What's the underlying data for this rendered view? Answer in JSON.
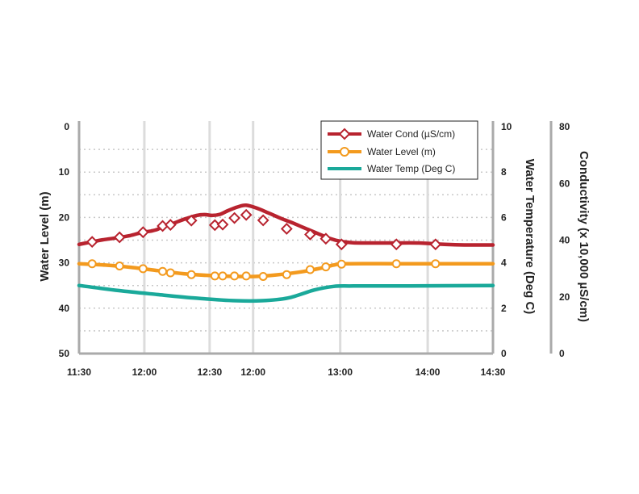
{
  "chart_data": {
    "type": "line",
    "x_tick_labels": [
      "11:30",
      "12:00",
      "12:30",
      "12:00",
      "13:00",
      "14:00",
      "14:30"
    ],
    "x_tick_hours": [
      11.5,
      12.0,
      12.5,
      12.833,
      13.5,
      14.17,
      14.67
    ],
    "x_range": [
      11.5,
      14.67
    ],
    "axes": {
      "water_level": {
        "title": "Water Level (m)",
        "range": [
          0,
          50
        ],
        "inverted": true,
        "ticks": [
          0,
          10,
          20,
          30,
          40,
          50
        ]
      },
      "water_temp": {
        "title": "Water Temperature (Deg C)",
        "range": [
          0,
          10
        ],
        "ticks": [
          0,
          2,
          4,
          6,
          8,
          10
        ]
      },
      "conductivity": {
        "title": "Conductivity (x 10,000 µS/cm)",
        "range": [
          0,
          80
        ],
        "ticks": [
          0,
          20,
          40,
          60,
          80
        ]
      }
    },
    "series": [
      {
        "name": "Water Cond (µS/cm)",
        "axis": "conductivity",
        "color": "#b8232f",
        "marker": "diamond",
        "points": [
          [
            11.5,
            38.5
          ],
          [
            11.6,
            39.4
          ],
          [
            11.68,
            40.1
          ],
          [
            11.8,
            40.9
          ],
          [
            11.89,
            41.6
          ],
          [
            11.98,
            42.7
          ],
          [
            12.05,
            43.2
          ],
          [
            12.1,
            43.8
          ],
          [
            12.15,
            45.0
          ],
          [
            12.2,
            45.5
          ],
          [
            12.26,
            46.6
          ],
          [
            12.32,
            47.6
          ],
          [
            12.4,
            48.7
          ],
          [
            12.46,
            49.0
          ],
          [
            12.52,
            48.7
          ],
          [
            12.58,
            49.1
          ],
          [
            12.64,
            50.4
          ],
          [
            12.72,
            51.8
          ],
          [
            12.78,
            52.3
          ],
          [
            12.86,
            51.3
          ],
          [
            12.95,
            49.6
          ],
          [
            13.05,
            47.6
          ],
          [
            13.14,
            46.0
          ],
          [
            13.23,
            44.2
          ],
          [
            13.33,
            42.3
          ],
          [
            13.42,
            40.6
          ],
          [
            13.5,
            39.6
          ],
          [
            13.6,
            39.1
          ],
          [
            13.75,
            39.0
          ],
          [
            13.9,
            39.0
          ],
          [
            14.1,
            39.0
          ],
          [
            14.3,
            38.5
          ],
          [
            14.45,
            38.3
          ],
          [
            14.67,
            38.3
          ]
        ],
        "marker_points": [
          [
            11.6,
            39.4
          ],
          [
            11.81,
            41.0
          ],
          [
            11.99,
            42.8
          ],
          [
            12.14,
            45.0
          ],
          [
            12.2,
            45.4
          ],
          [
            12.36,
            46.9
          ],
          [
            12.54,
            45.3
          ],
          [
            12.6,
            45.5
          ],
          [
            12.69,
            47.8
          ],
          [
            12.78,
            48.9
          ],
          [
            12.91,
            47.0
          ],
          [
            13.09,
            44.0
          ],
          [
            13.27,
            42.0
          ],
          [
            13.39,
            40.5
          ],
          [
            13.51,
            38.5
          ],
          [
            13.93,
            38.5
          ],
          [
            14.23,
            38.5
          ]
        ]
      },
      {
        "name": "Water Level (m)",
        "axis": "water_level",
        "color": "#f39a1e",
        "marker": "circle",
        "points": [
          [
            11.5,
            30.2
          ],
          [
            11.7,
            30.5
          ],
          [
            11.9,
            31.0
          ],
          [
            12.1,
            31.7
          ],
          [
            12.3,
            32.4
          ],
          [
            12.5,
            32.8
          ],
          [
            12.7,
            33.0
          ],
          [
            12.85,
            33.0
          ],
          [
            13.0,
            32.7
          ],
          [
            13.2,
            32.0
          ],
          [
            13.35,
            31.2
          ],
          [
            13.45,
            30.5
          ],
          [
            13.55,
            30.2
          ],
          [
            14.0,
            30.2
          ],
          [
            14.67,
            30.2
          ]
        ],
        "marker_points": [
          [
            11.6,
            30.2
          ],
          [
            11.81,
            30.7
          ],
          [
            11.99,
            31.3
          ],
          [
            12.14,
            31.9
          ],
          [
            12.2,
            32.2
          ],
          [
            12.36,
            32.6
          ],
          [
            12.54,
            32.9
          ],
          [
            12.6,
            32.9
          ],
          [
            12.69,
            32.9
          ],
          [
            12.78,
            32.9
          ],
          [
            12.91,
            33.0
          ],
          [
            13.09,
            32.6
          ],
          [
            13.27,
            31.5
          ],
          [
            13.39,
            30.9
          ],
          [
            13.51,
            30.3
          ],
          [
            13.93,
            30.2
          ],
          [
            14.23,
            30.2
          ]
        ]
      },
      {
        "name": "Water Temp (Deg C)",
        "axis": "water_temp",
        "color": "#1aa99a",
        "marker": "none",
        "points": [
          [
            11.5,
            3.0
          ],
          [
            11.8,
            2.78
          ],
          [
            12.1,
            2.6
          ],
          [
            12.4,
            2.44
          ],
          [
            12.7,
            2.33
          ],
          [
            12.9,
            2.33
          ],
          [
            13.1,
            2.45
          ],
          [
            13.3,
            2.8
          ],
          [
            13.45,
            2.96
          ],
          [
            13.6,
            2.98
          ],
          [
            14.0,
            2.98
          ],
          [
            14.67,
            3.0
          ]
        ]
      }
    ]
  }
}
